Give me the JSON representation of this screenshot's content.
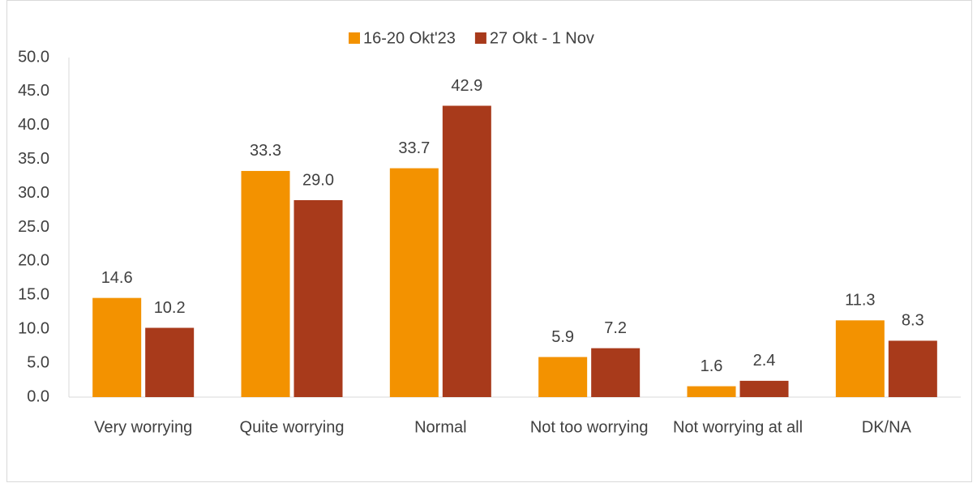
{
  "chart_data": {
    "type": "bar",
    "categories": [
      "Very worrying",
      "Quite worrying",
      "Normal",
      "Not too worrying",
      "Not worrying at all",
      "DK/NA"
    ],
    "series": [
      {
        "name": "16-20 Okt'23",
        "color": "#f39200",
        "values": [
          14.6,
          33.3,
          33.7,
          5.9,
          1.6,
          11.3
        ],
        "value_labels": [
          "14.6",
          "33.3",
          "33.7",
          "5.9",
          "1.6",
          "11.3"
        ]
      },
      {
        "name": "27 Okt - 1 Nov",
        "color": "#a83a1b",
        "values": [
          10.2,
          29.0,
          42.9,
          7.2,
          2.4,
          8.3
        ],
        "value_labels": [
          "10.2",
          "29.0",
          "42.9",
          "7.2",
          "2.4",
          "8.3"
        ]
      }
    ],
    "ylim": [
      0,
      50
    ],
    "yticks": [
      {
        "value": 0,
        "label": "0.0"
      },
      {
        "value": 5,
        "label": "5.0"
      },
      {
        "value": 10,
        "label": "10.0"
      },
      {
        "value": 15,
        "label": "15.0"
      },
      {
        "value": 20,
        "label": "20.0"
      },
      {
        "value": 25,
        "label": "25.0"
      },
      {
        "value": 30,
        "label": "30.0"
      },
      {
        "value": 35,
        "label": "35.0"
      },
      {
        "value": 40,
        "label": "40.0"
      },
      {
        "value": 45,
        "label": "45.0"
      },
      {
        "value": 50,
        "label": "50.0"
      }
    ],
    "grid": false,
    "legend": "top"
  }
}
